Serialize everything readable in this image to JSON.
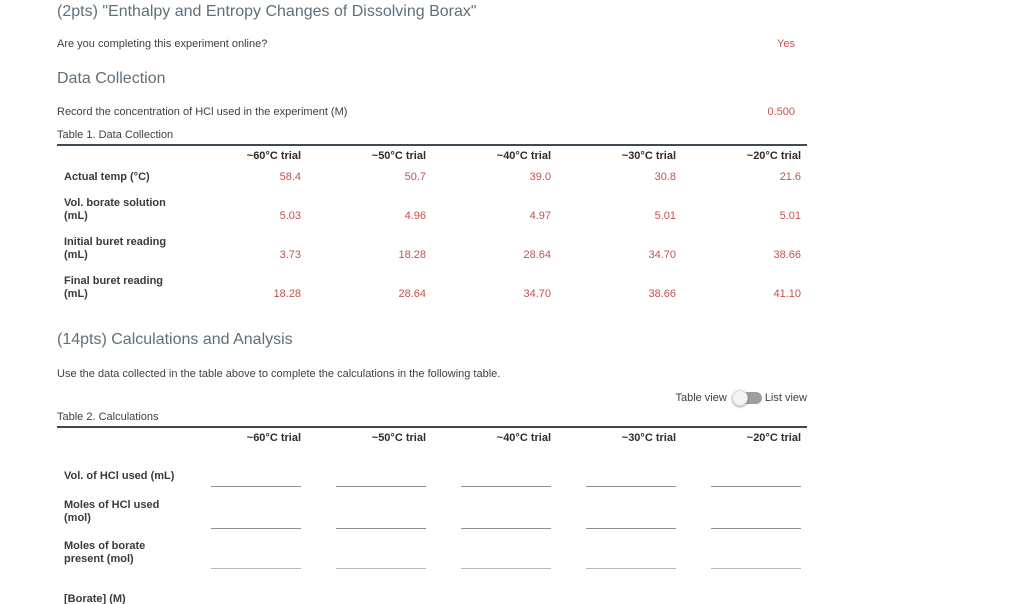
{
  "header": {
    "title": "(2pts) \"Enthalpy and Entropy Changes of Dissolving Borax\""
  },
  "questions": {
    "online": {
      "label": "Are you completing this experiment online?",
      "answer": "Yes"
    },
    "hcl_concentration": {
      "label": "Record the concentration of HCl used in the experiment (M)",
      "answer": "0.500"
    }
  },
  "data_collection": {
    "heading": "Data Collection",
    "table_caption": "Table 1. Data Collection",
    "columns": [
      "~60°C trial",
      "~50°C trial",
      "~40°C trial",
      "~30°C trial",
      "~20°C trial"
    ],
    "rows": [
      {
        "label": "Actual temp (°C)",
        "values": [
          "58.4",
          "50.7",
          "39.0",
          "30.8",
          "21.6"
        ]
      },
      {
        "label": "Vol. borate solution\n(mL)",
        "values": [
          "5.03",
          "4.96",
          "4.97",
          "5.01",
          "5.01"
        ]
      },
      {
        "label": "Initial buret reading\n(mL)",
        "values": [
          "3.73",
          "18.28",
          "28.64",
          "34.70",
          "38.66"
        ]
      },
      {
        "label": "Final buret reading\n(mL)",
        "values": [
          "18.28",
          "28.64",
          "34.70",
          "38.66",
          "41.10"
        ]
      }
    ]
  },
  "calculations": {
    "heading": "(14pts) Calculations and Analysis",
    "instruction": "Use the data collected in the table above to complete the calculations in the following table.",
    "view_toggle": {
      "left_label": "Table view",
      "right_label": "List view",
      "selected": "Table view"
    },
    "table_caption": "Table 2. Calculations",
    "columns": [
      "~60°C trial",
      "~50°C trial",
      "~40°C trial",
      "~30°C trial",
      "~20°C trial"
    ],
    "rows": [
      {
        "label": "Vol. of HCl used (mL)",
        "inputs": [
          "",
          "",
          "",
          "",
          ""
        ]
      },
      {
        "label": "Moles of HCl used\n(mol)",
        "inputs": [
          "",
          "",
          "",
          "",
          ""
        ]
      },
      {
        "label": "Moles of borate\npresent (mol)",
        "inputs": [
          "",
          "",
          "",
          "",
          ""
        ]
      },
      {
        "label": "[Borate] (M)",
        "inputs": [
          "",
          "",
          "",
          "",
          ""
        ]
      }
    ]
  },
  "colors": {
    "heading": "#616f78",
    "body_text": "#3f3f3f",
    "answer_red": "#c5514c",
    "table_border": "#3e4b54",
    "input_underline": "#8f8f8f",
    "input_underline_light": "#b8b8b8",
    "toggle_track": "#9e9e9e",
    "toggle_knob": "#f4f4f4"
  }
}
